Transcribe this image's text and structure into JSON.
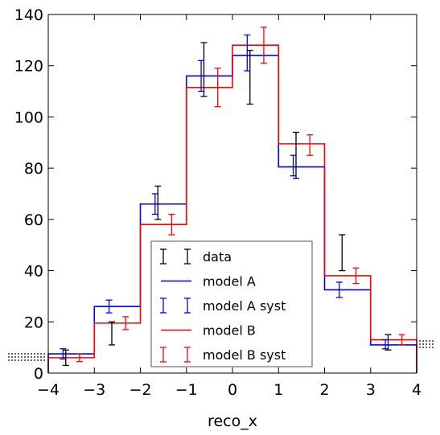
{
  "chart_data": {
    "type": "step",
    "title": "",
    "xlabel": "reco_x",
    "ylabel": "",
    "xlim": [
      -4,
      4
    ],
    "ylim": [
      0,
      140
    ],
    "xticks": [
      "−4",
      "−3",
      "−2",
      "−1",
      "0",
      "1",
      "2",
      "3",
      "4"
    ],
    "yticks": [
      "0",
      "20",
      "40",
      "60",
      "80",
      "100",
      "120",
      "140"
    ],
    "grid": false,
    "legend_position": "lower-center",
    "bin_edges": [
      -4,
      -3,
      -2,
      -1,
      0,
      1,
      2,
      3,
      4
    ],
    "bin_centers": [
      -3.5,
      -2.5,
      -1.5,
      -0.5,
      0.5,
      1.5,
      2.5,
      3.5
    ],
    "legend": [
      {
        "label": "data",
        "kind": "errorbar",
        "color": "#000000"
      },
      {
        "label": "model A",
        "kind": "line",
        "color": "#0000ff"
      },
      {
        "label": "model A syst",
        "kind": "errorbar",
        "color": "#0000ff"
      },
      {
        "label": "model B",
        "kind": "line",
        "color": "#ff0000"
      },
      {
        "label": "model B syst",
        "kind": "errorbar",
        "color": "#ff0000"
      }
    ],
    "series": [
      {
        "name": "data",
        "kind": "errorbar",
        "x_offset": -0.12,
        "color": "#000000",
        "points": [
          {
            "y": 6,
            "low": 3,
            "high": 9
          },
          {
            "y": 15,
            "low": 11,
            "high": 20
          },
          {
            "y": 66,
            "low": 60,
            "high": 73
          },
          {
            "y": 116,
            "low": 108,
            "high": 129
          },
          {
            "y": 115,
            "low": 105,
            "high": 126
          },
          {
            "y": 85,
            "low": 76,
            "high": 94
          },
          {
            "y": 47,
            "low": 40,
            "high": 54
          },
          {
            "y": 12,
            "low": 9,
            "high": 15
          }
        ]
      },
      {
        "name": "model A",
        "kind": "step",
        "color": "#0000ff",
        "values": [
          7.5,
          26,
          66,
          116,
          124,
          80.5,
          32.5,
          11
        ]
      },
      {
        "name": "model A syst",
        "kind": "errorbar",
        "x_offset": -0.18,
        "color": "#0000ff",
        "points": [
          {
            "y": 7.5,
            "low": 5.5,
            "high": 9.5
          },
          {
            "y": 26,
            "low": 23.5,
            "high": 28.5
          },
          {
            "y": 66,
            "low": 62,
            "high": 70
          },
          {
            "y": 116,
            "low": 110,
            "high": 122
          },
          {
            "y": 124,
            "low": 118,
            "high": 132
          },
          {
            "y": 80.5,
            "low": 77,
            "high": 85
          },
          {
            "y": 32.5,
            "low": 29.5,
            "high": 35.5
          },
          {
            "y": 11,
            "low": 9.5,
            "high": 13
          }
        ]
      },
      {
        "name": "model B",
        "kind": "step",
        "color": "#ff0000",
        "values": [
          6,
          19.5,
          58,
          111.5,
          128,
          89.5,
          38,
          13
        ]
      },
      {
        "name": "model B syst",
        "kind": "errorbar",
        "x_offset": 0.18,
        "color": "#ff0000",
        "points": [
          {
            "y": 6,
            "low": 4.5,
            "high": 7.5
          },
          {
            "y": 19.5,
            "low": 17,
            "high": 22
          },
          {
            "y": 58,
            "low": 54,
            "high": 62
          },
          {
            "y": 111.5,
            "low": 104,
            "high": 119
          },
          {
            "y": 128,
            "low": 121,
            "high": 135
          },
          {
            "y": 89.5,
            "low": 85,
            "high": 93
          },
          {
            "y": 38,
            "low": 35,
            "high": 41
          },
          {
            "y": 13,
            "low": 11,
            "high": 15
          }
        ]
      }
    ]
  }
}
